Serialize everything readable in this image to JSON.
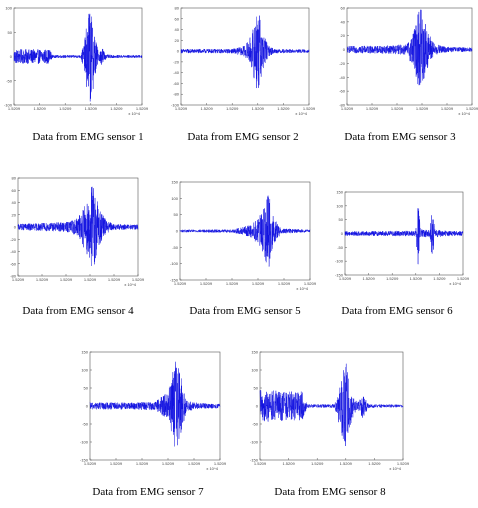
{
  "colors": {
    "signal": "#1010e0",
    "axis": "#555555",
    "background": "#ffffff"
  },
  "chart_data": [
    {
      "type": "line",
      "caption": "Data from EMG sensor 1",
      "xticks": [
        "1.5209",
        "1.5209",
        "1.5209",
        "1.5209",
        "1.5209",
        "1.5209"
      ],
      "xexponent": "x 10^4",
      "yticks": [
        100,
        50,
        0,
        -50,
        -100
      ],
      "ylim": [
        -100,
        100
      ],
      "envelope": [
        {
          "t": 0.0,
          "a": 15
        },
        {
          "t": 0.28,
          "a": 15
        },
        {
          "t": 0.3,
          "a": 3
        },
        {
          "t": 0.52,
          "a": 3
        },
        {
          "t": 0.55,
          "a": 30
        },
        {
          "t": 0.59,
          "a": 110
        },
        {
          "t": 0.63,
          "a": 50
        },
        {
          "t": 0.66,
          "a": 8
        },
        {
          "t": 0.69,
          "a": 20
        },
        {
          "t": 0.72,
          "a": 4
        },
        {
          "t": 0.78,
          "a": 3
        },
        {
          "t": 1.0,
          "a": 3
        }
      ]
    },
    {
      "type": "line",
      "caption": "Data from EMG sensor 2",
      "xticks": [
        "1.5209",
        "1.5209",
        "1.5209",
        "1.5209",
        "1.5209",
        "1.5209"
      ],
      "xexponent": "x 10^4",
      "yticks": [
        80,
        60,
        40,
        20,
        0,
        -20,
        -40,
        -60,
        -80,
        -100
      ],
      "ylim": [
        -100,
        80
      ],
      "envelope": [
        {
          "t": 0.0,
          "a": 4
        },
        {
          "t": 0.4,
          "a": 4
        },
        {
          "t": 0.5,
          "a": 10
        },
        {
          "t": 0.55,
          "a": 30
        },
        {
          "t": 0.6,
          "a": 80
        },
        {
          "t": 0.64,
          "a": 40
        },
        {
          "t": 0.68,
          "a": 10
        },
        {
          "t": 0.74,
          "a": 4
        },
        {
          "t": 1.0,
          "a": 3
        }
      ]
    },
    {
      "type": "line",
      "caption": "Data from EMG sensor 3",
      "xticks": [
        "1.5209",
        "1.5209",
        "1.5209",
        "1.5209",
        "1.5209",
        "1.5209"
      ],
      "xexponent": "x 10^4",
      "yticks": [
        60,
        40,
        20,
        0,
        -20,
        -40,
        -60,
        -80
      ],
      "ylim": [
        -80,
        60
      ],
      "envelope": [
        {
          "t": 0.0,
          "a": 5
        },
        {
          "t": 0.35,
          "a": 6
        },
        {
          "t": 0.48,
          "a": 8
        },
        {
          "t": 0.54,
          "a": 30
        },
        {
          "t": 0.59,
          "a": 70
        },
        {
          "t": 0.64,
          "a": 30
        },
        {
          "t": 0.7,
          "a": 8
        },
        {
          "t": 0.8,
          "a": 4
        },
        {
          "t": 1.0,
          "a": 3
        }
      ]
    },
    {
      "type": "line",
      "caption": "Data from EMG sensor 4",
      "xticks": [
        "1.5209",
        "1.5209",
        "1.5209",
        "1.5209",
        "1.5209",
        "1.5209"
      ],
      "xexponent": "x 10^4",
      "yticks": [
        80,
        60,
        40,
        20,
        0,
        -20,
        -40,
        -60,
        -80
      ],
      "ylim": [
        -80,
        80
      ],
      "envelope": [
        {
          "t": 0.0,
          "a": 5
        },
        {
          "t": 0.4,
          "a": 8
        },
        {
          "t": 0.5,
          "a": 15
        },
        {
          "t": 0.56,
          "a": 40
        },
        {
          "t": 0.62,
          "a": 75
        },
        {
          "t": 0.68,
          "a": 30
        },
        {
          "t": 0.74,
          "a": 10
        },
        {
          "t": 0.8,
          "a": 5
        },
        {
          "t": 1.0,
          "a": 4
        }
      ]
    },
    {
      "type": "line",
      "caption": "Data from EMG sensor 5",
      "xticks": [
        "1.5209",
        "1.5209",
        "1.5209",
        "1.5209",
        "1.5209",
        "1.5209"
      ],
      "xexponent": "x 10^4",
      "yticks": [
        150,
        100,
        50,
        0,
        -50,
        -100,
        -150
      ],
      "ylim": [
        -150,
        150
      ],
      "envelope": [
        {
          "t": 0.0,
          "a": 4
        },
        {
          "t": 0.4,
          "a": 5
        },
        {
          "t": 0.48,
          "a": 12
        },
        {
          "t": 0.55,
          "a": 20
        },
        {
          "t": 0.62,
          "a": 50
        },
        {
          "t": 0.68,
          "a": 120
        },
        {
          "t": 0.72,
          "a": 40
        },
        {
          "t": 0.78,
          "a": 8
        },
        {
          "t": 1.0,
          "a": 4
        }
      ]
    },
    {
      "type": "line",
      "caption": "Data from EMG sensor 6",
      "xticks": [
        "1.5209",
        "1.5209",
        "1.5209",
        "1.5209",
        "1.5209",
        "1.5209"
      ],
      "xexponent": "x 10^4",
      "yticks": [
        150,
        100,
        50,
        0,
        -50,
        -100,
        -150
      ],
      "ylim": [
        -150,
        150
      ],
      "envelope": [
        {
          "t": 0.0,
          "a": 8
        },
        {
          "t": 0.6,
          "a": 10
        },
        {
          "t": 0.62,
          "a": 120
        },
        {
          "t": 0.64,
          "a": 15
        },
        {
          "t": 0.72,
          "a": 12
        },
        {
          "t": 0.74,
          "a": 110
        },
        {
          "t": 0.76,
          "a": 15
        },
        {
          "t": 0.85,
          "a": 10
        },
        {
          "t": 1.0,
          "a": 8
        }
      ]
    },
    {
      "type": "line",
      "caption": "Data from EMG sensor 7",
      "xticks": [
        "1.5209",
        "1.5209",
        "1.5209",
        "1.5209",
        "1.5209",
        "1.5209"
      ],
      "xexponent": "x 10^4",
      "yticks": [
        150,
        100,
        50,
        0,
        -50,
        -100,
        -150
      ],
      "ylim": [
        -150,
        150
      ],
      "envelope": [
        {
          "t": 0.0,
          "a": 10
        },
        {
          "t": 0.3,
          "a": 10
        },
        {
          "t": 0.5,
          "a": 12
        },
        {
          "t": 0.6,
          "a": 40
        },
        {
          "t": 0.66,
          "a": 130
        },
        {
          "t": 0.7,
          "a": 80
        },
        {
          "t": 0.74,
          "a": 15
        },
        {
          "t": 0.84,
          "a": 8
        },
        {
          "t": 1.0,
          "a": 6
        }
      ]
    },
    {
      "type": "line",
      "caption": "Data from EMG sensor 8",
      "xticks": [
        "1.5209",
        "1.5209",
        "1.5209",
        "1.5209",
        "1.5209",
        "1.5209"
      ],
      "xexponent": "x 10^4",
      "yticks": [
        150,
        100,
        50,
        0,
        -50,
        -100,
        -150
      ],
      "ylim": [
        -150,
        150
      ],
      "envelope": [
        {
          "t": 0.0,
          "a": 45
        },
        {
          "t": 0.3,
          "a": 40
        },
        {
          "t": 0.33,
          "a": 5
        },
        {
          "t": 0.52,
          "a": 5
        },
        {
          "t": 0.56,
          "a": 60
        },
        {
          "t": 0.6,
          "a": 130
        },
        {
          "t": 0.64,
          "a": 40
        },
        {
          "t": 0.68,
          "a": 10
        },
        {
          "t": 0.72,
          "a": 35
        },
        {
          "t": 0.76,
          "a": 5
        },
        {
          "t": 1.0,
          "a": 4
        }
      ]
    }
  ]
}
